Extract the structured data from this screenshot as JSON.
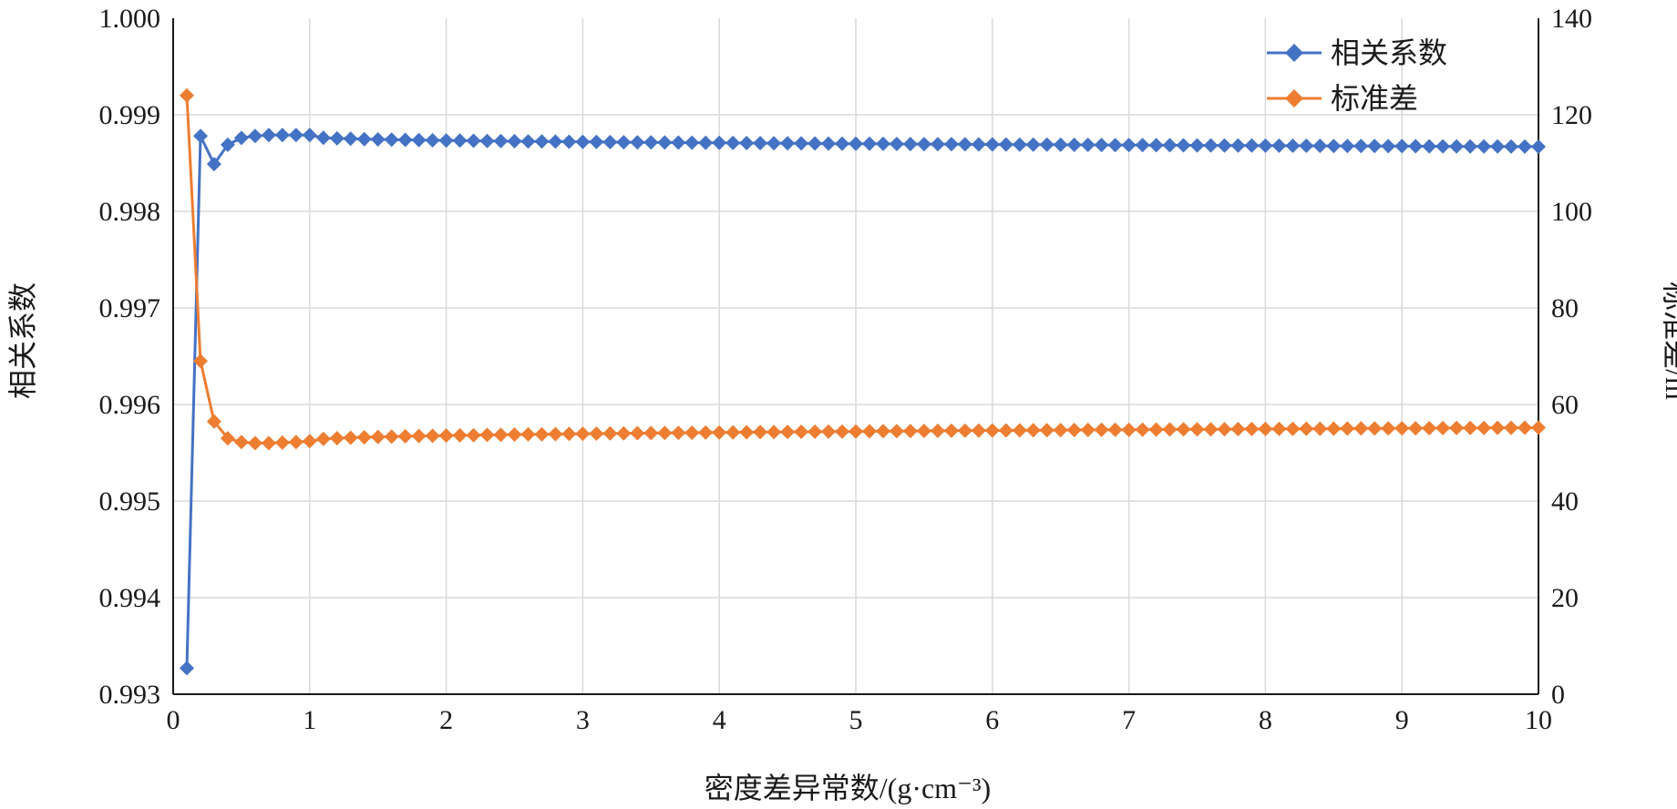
{
  "chart_data": {
    "type": "line",
    "xlabel": "密度差异常数/(g·cm⁻³)",
    "x_range": [
      0,
      10
    ],
    "x_ticks": [
      "0",
      "1",
      "2",
      "3",
      "4",
      "5",
      "6",
      "7",
      "8",
      "9",
      "10"
    ],
    "y_left": {
      "label": "相关系数",
      "range": [
        0.993,
        1.0
      ],
      "ticks": [
        "0.993",
        "0.994",
        "0.995",
        "0.996",
        "0.997",
        "0.998",
        "0.999",
        "1.000"
      ]
    },
    "y_right": {
      "label": "标准差/m",
      "range": [
        0,
        140
      ],
      "ticks": [
        "0",
        "20",
        "40",
        "60",
        "80",
        "100",
        "120",
        "140"
      ]
    },
    "grid": true,
    "legend_position": "top-right",
    "marker": "diamond",
    "x_start": 0.1,
    "x_step": 0.1,
    "series": [
      {
        "name": "相关系数",
        "axis": "left",
        "color": "#4472C4",
        "head": [
          0.99327,
          0.99878,
          0.99849,
          0.99869,
          0.99876,
          0.99878,
          0.99879,
          0.99879,
          0.99879,
          0.99879
        ],
        "tail": [
          0.99878,
          0.99867
        ],
        "decay": 2.5
      },
      {
        "name": "标准差",
        "axis": "right",
        "color": "#ED7D31",
        "head": [
          124,
          69,
          56.5,
          53,
          52.2,
          52,
          52,
          52.1,
          52.2,
          52.4
        ],
        "tail": [
          52.4,
          55.2
        ],
        "decay": 2.5
      }
    ]
  }
}
